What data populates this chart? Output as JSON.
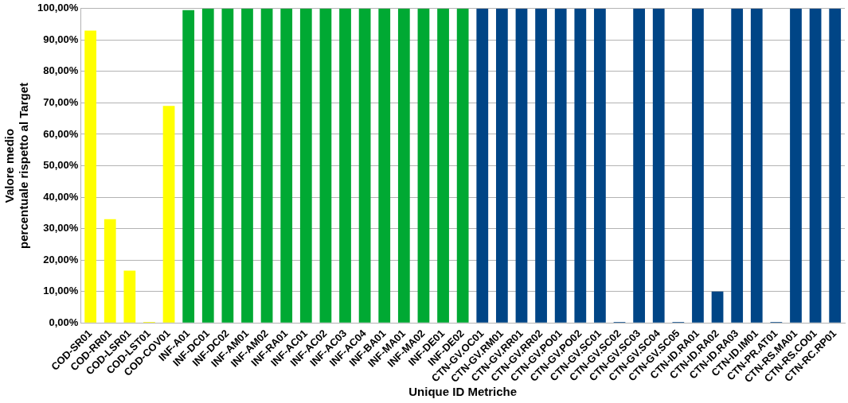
{
  "chart_data": {
    "type": "bar",
    "xlabel": "Unique ID Metriche",
    "ylabel": "Valore medio\npercentuale rispetto al Target",
    "categories": [
      "COD-SR01",
      "COD-RR01",
      "COD-LSR01",
      "COD-LST01",
      "COD-COV01",
      "INF-A01",
      "INF-DC01",
      "INF-DC02",
      "INF-AM01",
      "INF-AM02",
      "INF-RA01",
      "INF-AC01",
      "INF-AC02",
      "INF-AC03",
      "INF-AC04",
      "INF-BA01",
      "INF-MA01",
      "INF-MA02",
      "INF-DE01",
      "INF-DE02",
      "CTN-GV.OC01",
      "CTN-GV.RM01",
      "CTN-GV.RR01",
      "CTN-GV.RR02",
      "CTN-GV.PO01",
      "CTN-GV.PO02",
      "CTN-GV.SC01",
      "CTN-GV.SC02",
      "CTN-GV.SC03",
      "CTN-GV.SC04",
      "CTN-GV.SC05",
      "CTN-ID.RA01",
      "CTN-ID.RA02",
      "CTN-ID.RA03",
      "CTN-ID.IM01",
      "CTN-PR.AT01",
      "CTN-RS.MA01",
      "CTN-RS.CO01",
      "CTN-RC.RP01"
    ],
    "values": [
      93,
      33,
      16.6,
      0.3,
      69,
      99.5,
      100,
      100,
      100,
      100,
      100,
      100,
      100,
      100,
      100,
      100,
      100,
      100,
      100,
      100,
      100,
      100,
      100,
      100,
      100,
      100,
      100,
      0.3,
      100,
      100,
      0.3,
      100,
      10,
      100,
      100,
      0.3,
      100,
      100,
      100
    ],
    "colors": [
      "#ffff00",
      "#ffff00",
      "#ffff00",
      "#ffff00",
      "#ffff00",
      "#00a933",
      "#00a933",
      "#00a933",
      "#00a933",
      "#00a933",
      "#00a933",
      "#00a933",
      "#00a933",
      "#00a933",
      "#00a933",
      "#00a933",
      "#00a933",
      "#00a933",
      "#00a933",
      "#00a933",
      "#004586",
      "#004586",
      "#004586",
      "#004586",
      "#004586",
      "#004586",
      "#004586",
      "#004586",
      "#004586",
      "#004586",
      "#004586",
      "#004586",
      "#004586",
      "#004586",
      "#004586",
      "#004586",
      "#004586",
      "#004586",
      "#004586"
    ],
    "ylim": [
      0,
      100
    ],
    "yticks": [
      {
        "value": 0,
        "label": "0,00%"
      },
      {
        "value": 10,
        "label": "10,00%"
      },
      {
        "value": 20,
        "label": "20,00%"
      },
      {
        "value": 30,
        "label": "30,00%"
      },
      {
        "value": 40,
        "label": "40,00%"
      },
      {
        "value": 50,
        "label": "50,00%"
      },
      {
        "value": 60,
        "label": "60,00%"
      },
      {
        "value": 70,
        "label": "70,00%"
      },
      {
        "value": 80,
        "label": "80,00%"
      },
      {
        "value": 90,
        "label": "90,00%"
      },
      {
        "value": 100,
        "label": "100,00%"
      }
    ],
    "grid": "y",
    "legend": false
  }
}
